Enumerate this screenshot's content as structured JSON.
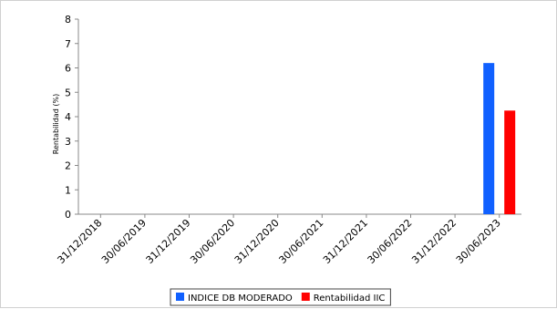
{
  "chart_data": {
    "type": "bar",
    "categories": [
      "31/12/2018",
      "30/06/2019",
      "31/12/2019",
      "30/06/2020",
      "31/12/2020",
      "30/06/2021",
      "31/12/2021",
      "30/06/2022",
      "31/12/2022",
      "30/06/2023"
    ],
    "series": [
      {
        "name": "INDICE DB MODERADO",
        "color": "#1060ff",
        "values": [
          null,
          null,
          null,
          null,
          null,
          null,
          null,
          null,
          null,
          6.2
        ]
      },
      {
        "name": "Rentabilidad IIC",
        "color": "#ff0000",
        "values": [
          null,
          null,
          null,
          null,
          null,
          null,
          null,
          null,
          null,
          4.25
        ]
      }
    ],
    "title": "",
    "xlabel": "",
    "ylabel": "Rentabilidad (%)",
    "ylim": [
      0,
      8
    ],
    "yticks": [
      "0",
      "1",
      "2",
      "3",
      "4",
      "5",
      "6",
      "7",
      "8"
    ],
    "grid": false,
    "legend_position": "bottom"
  }
}
